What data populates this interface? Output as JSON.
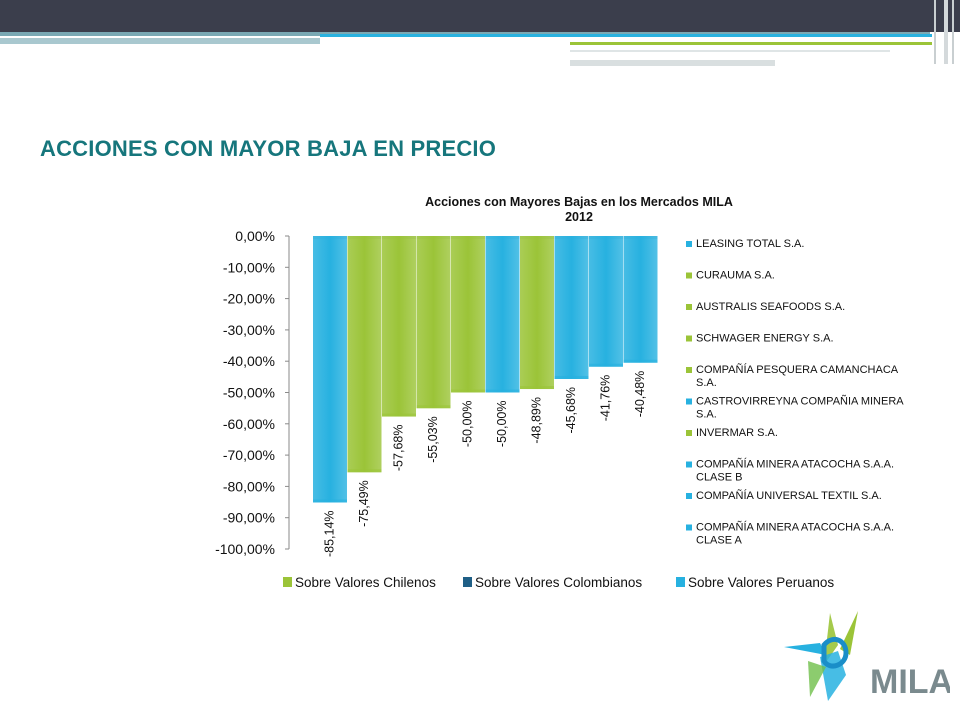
{
  "slide": {
    "title": "ACCIONES CON MAYOR BAJA EN PRECIO"
  },
  "logo": {
    "text": "MILA"
  },
  "colors": {
    "chile": "#9bc438",
    "colombia": "#1f5f86",
    "peru": "#27b1e0",
    "title": "#16767c",
    "topbar": "#3b3e4c"
  },
  "chart_data": {
    "type": "bar",
    "title": "Acciones con Mayores Bajas en los Mercados MILA",
    "subtitle": "2012",
    "ylim": [
      -100,
      0
    ],
    "yticks": [
      0,
      -10,
      -20,
      -30,
      -40,
      -50,
      -60,
      -70,
      -80,
      -90,
      -100
    ],
    "ytick_labels": [
      "0,00%",
      "-10,00%",
      "-20,00%",
      "-30,00%",
      "-40,00%",
      "-50,00%",
      "-60,00%",
      "-70,00%",
      "-80,00%",
      "-90,00%",
      "-100,00%"
    ],
    "grid": false,
    "legend_position": "right",
    "bars": [
      {
        "name": "COMPAÑÍA MINERA ATACOCHA S.A.A. CLASE A",
        "value": -85.14,
        "label": "-85,14%",
        "market": "peru"
      },
      {
        "name": "INVERMAR S.A.",
        "value": -75.49,
        "label": "-75,49%",
        "market": "chile"
      },
      {
        "name": "SCHWAGER ENERGY S.A.",
        "value": -57.68,
        "label": "-57,68%",
        "market": "chile"
      },
      {
        "name": "COMPAÑÍA PESQUERA CAMANCHACA S.A.",
        "value": -55.03,
        "label": "-55,03%",
        "market": "chile"
      },
      {
        "name": "AUSTRALIS SEAFOODS S.A.",
        "value": -50.0,
        "label": "-50,00%",
        "market": "chile"
      },
      {
        "name": "COMPAÑÍA UNIVERSAL TEXTIL S.A.",
        "value": -50.0,
        "label": "-50,00%",
        "market": "peru"
      },
      {
        "name": "CURAUMA S.A.",
        "value": -48.89,
        "label": "-48,89%",
        "market": "chile"
      },
      {
        "name": "COMPAÑÍA MINERA ATACOCHA S.A.A. CLASE B",
        "value": -45.68,
        "label": "-45,68%",
        "market": "peru"
      },
      {
        "name": "CASTROVIRREYNA COMPAÑIA MINERA S.A.",
        "value": -41.76,
        "label": "-41,76%",
        "market": "peru"
      },
      {
        "name": "LEASING TOTAL S.A.",
        "value": -40.48,
        "label": "-40,48%",
        "market": "peru"
      }
    ],
    "legend": [
      {
        "lines": [
          "LEASING TOTAL S.A."
        ],
        "market": "peru"
      },
      {
        "lines": [
          "CURAUMA S.A."
        ],
        "market": "chile"
      },
      {
        "lines": [
          "AUSTRALIS SEAFOODS S.A."
        ],
        "market": "chile"
      },
      {
        "lines": [
          "SCHWAGER ENERGY S.A."
        ],
        "market": "chile"
      },
      {
        "lines": [
          "COMPAÑÍA PESQUERA CAMANCHACA",
          "S.A."
        ],
        "market": "chile"
      },
      {
        "lines": [
          "CASTROVIRREYNA COMPAÑIA MINERA",
          "S.A."
        ],
        "market": "peru"
      },
      {
        "lines": [
          "INVERMAR S.A."
        ],
        "market": "chile"
      },
      {
        "lines": [
          "COMPAÑÍA MINERA ATACOCHA S.A.A.",
          "CLASE B"
        ],
        "market": "peru"
      },
      {
        "lines": [
          "COMPAÑÍA UNIVERSAL TEXTIL S.A."
        ],
        "market": "peru"
      },
      {
        "lines": [
          "COMPAÑÍA MINERA ATACOCHA S.A.A.",
          "CLASE A"
        ],
        "market": "peru"
      }
    ],
    "market_legend": [
      {
        "label": "Sobre Valores Chilenos",
        "market": "chile"
      },
      {
        "label": "Sobre Valores Colombianos",
        "market": "colombia"
      },
      {
        "label": "Sobre Valores Peruanos",
        "market": "peru"
      }
    ]
  }
}
